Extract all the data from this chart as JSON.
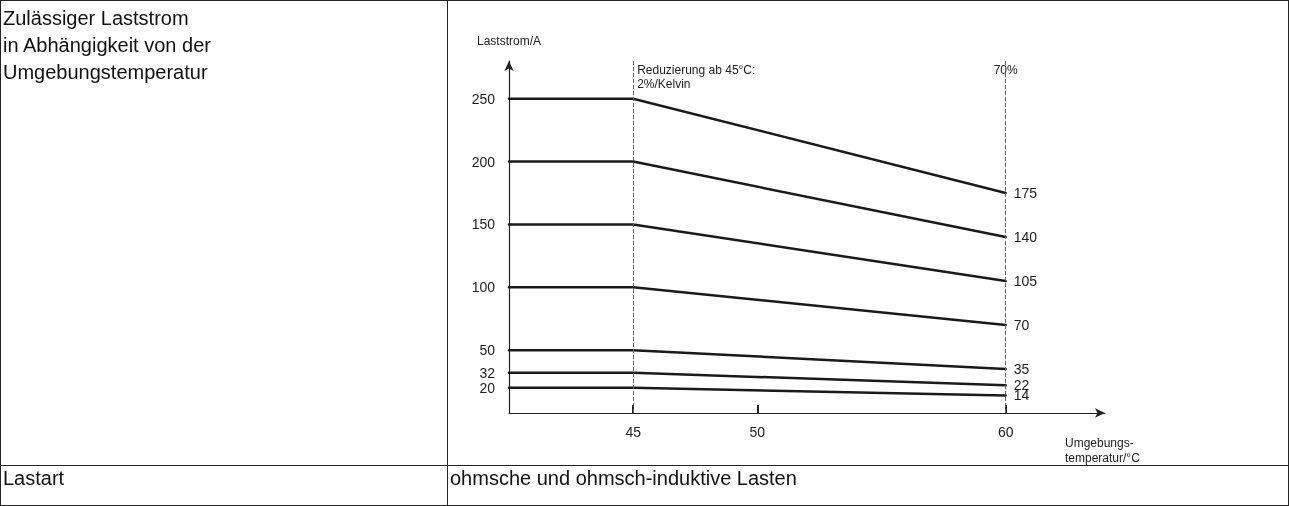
{
  "chart_data": {
    "type": "line",
    "title": "Zulässiger Laststrom\nin Abhängigkeit von der\nUmgebungstemperatur",
    "xlabel": "Umgebungs-\ntemperatur/°C",
    "ylabel": "Laststrom/A",
    "xlim": [
      40,
      64
    ],
    "ylim": [
      0,
      280
    ],
    "xticks": [
      45,
      50,
      60
    ],
    "yticks": [
      20,
      32,
      50,
      100,
      150,
      200,
      250
    ],
    "series": [
      {
        "color": "#1a1a1a",
        "x": [
          40,
          45,
          60
        ],
        "values": [
          250,
          250,
          175
        ],
        "value_labels": [
          null,
          null,
          "175"
        ]
      },
      {
        "color": "#1a1a1a",
        "x": [
          40,
          45,
          60
        ],
        "values": [
          200,
          200,
          140
        ],
        "value_labels": [
          null,
          null,
          "140"
        ]
      },
      {
        "color": "#1a1a1a",
        "x": [
          40,
          45,
          60
        ],
        "values": [
          150,
          150,
          105
        ],
        "value_labels": [
          null,
          null,
          "105"
        ]
      },
      {
        "color": "#1a1a1a",
        "x": [
          40,
          45,
          60
        ],
        "values": [
          100,
          100,
          70
        ],
        "value_labels": [
          null,
          null,
          "70"
        ]
      },
      {
        "color": "#1a1a1a",
        "x": [
          40,
          45,
          60
        ],
        "values": [
          50,
          50,
          35
        ],
        "value_labels": [
          null,
          null,
          "35"
        ]
      },
      {
        "color": "#1a1a1a",
        "x": [
          40,
          45,
          60
        ],
        "values": [
          32,
          32,
          22
        ],
        "value_labels": [
          null,
          null,
          "22"
        ]
      },
      {
        "color": "#1a1a1a",
        "x": [
          40,
          45,
          60
        ],
        "values": [
          20,
          20,
          14
        ],
        "value_labels": [
          null,
          null,
          "14"
        ]
      }
    ],
    "ref_lines": [
      {
        "axis": "x",
        "value": 45,
        "label": "Reduzierung ab 45°C:\n2%/Kelvin",
        "line_style": "dashed",
        "color": "#666666"
      },
      {
        "axis": "x",
        "value": 60,
        "line_style": "dashed",
        "color": "#666666"
      }
    ],
    "annotations": [
      "Lastart",
      "ohmsche und ohmsch-induktive Lasten",
      {
        "text": "70%",
        "x": 60
      }
    ]
  }
}
